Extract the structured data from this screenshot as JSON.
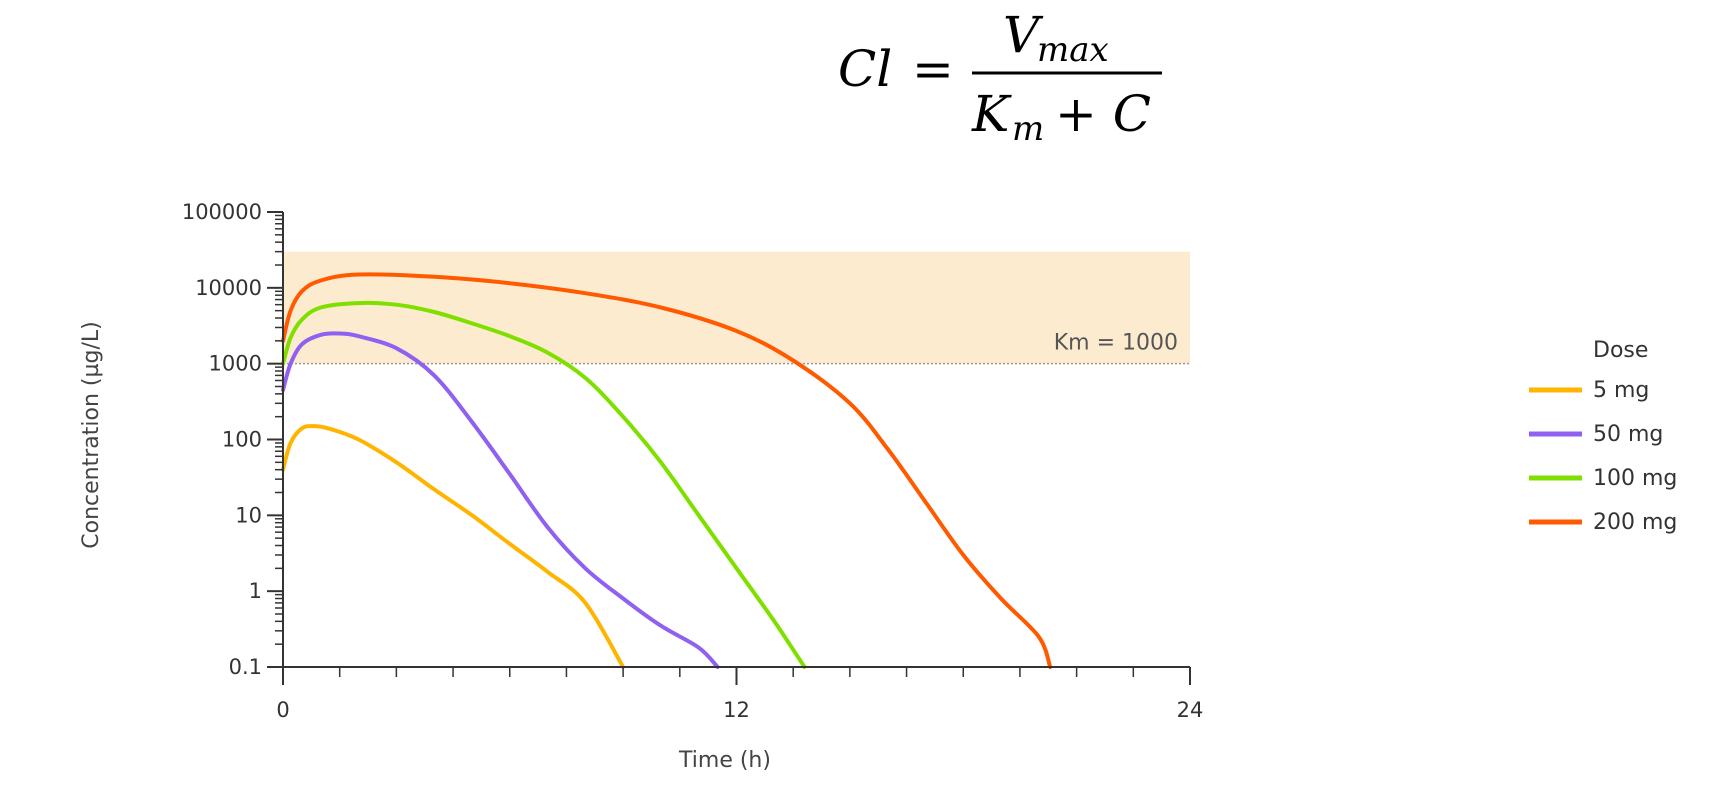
{
  "formula": {
    "lhs": "Cl",
    "equals": "=",
    "num_main": "V",
    "num_sub": "max",
    "den_main": "K",
    "den_sub": "m",
    "den_rest": "+ C"
  },
  "chart_data": {
    "type": "line",
    "title": "",
    "xlabel": "Time (h)",
    "ylabel": "Concentration (µg/L)",
    "xlim": [
      0,
      24
    ],
    "ylim": [
      0.1,
      100000
    ],
    "yscale": "log",
    "xticks": [
      0,
      12,
      24
    ],
    "xtick_labels": [
      "0",
      "12",
      "24"
    ],
    "yticks": [
      0.1,
      1,
      10,
      100,
      1000,
      10000,
      100000
    ],
    "ytick_labels": [
      "0.1",
      "1",
      "10",
      "100",
      "1000",
      "10000",
      "100000"
    ],
    "grid": false,
    "legend": {
      "title": "Dose",
      "position": "right"
    },
    "shaded_band": {
      "from": 1000,
      "to": 30000,
      "color": "#fdebd0"
    },
    "reference_line": {
      "y": 1000,
      "label": "Km = 1000",
      "color": "#999999"
    },
    "series": [
      {
        "name": "5 mg",
        "color": "#ffb400",
        "points": [
          [
            0,
            40
          ],
          [
            0.2,
            90
          ],
          [
            0.5,
            140
          ],
          [
            0.8,
            150
          ],
          [
            1.2,
            140
          ],
          [
            2,
            100
          ],
          [
            3,
            50
          ],
          [
            4,
            22
          ],
          [
            5,
            10
          ],
          [
            6,
            4.2
          ],
          [
            7,
            1.8
          ],
          [
            8,
            0.7
          ],
          [
            9,
            0.1
          ]
        ]
      },
      {
        "name": "50 mg",
        "color": "#9060f0",
        "points": [
          [
            0,
            450
          ],
          [
            0.2,
            1000
          ],
          [
            0.5,
            1800
          ],
          [
            1,
            2400
          ],
          [
            1.5,
            2500
          ],
          [
            2,
            2300
          ],
          [
            3,
            1600
          ],
          [
            4,
            700
          ],
          [
            5,
            170
          ],
          [
            6,
            35
          ],
          [
            7,
            7
          ],
          [
            8,
            2
          ],
          [
            9,
            0.8
          ],
          [
            10,
            0.35
          ],
          [
            11,
            0.18
          ],
          [
            11.5,
            0.1
          ]
        ]
      },
      {
        "name": "100 mg",
        "color": "#7fe000",
        "points": [
          [
            0,
            1000
          ],
          [
            0.2,
            2200
          ],
          [
            0.5,
            3800
          ],
          [
            1,
            5500
          ],
          [
            2,
            6300
          ],
          [
            3,
            6000
          ],
          [
            4,
            4800
          ],
          [
            5,
            3400
          ],
          [
            6,
            2300
          ],
          [
            7,
            1400
          ],
          [
            8,
            650
          ],
          [
            9,
            200
          ],
          [
            10,
            50
          ],
          [
            11,
            10
          ],
          [
            12,
            2
          ],
          [
            13,
            0.4
          ],
          [
            13.8,
            0.1
          ]
        ]
      },
      {
        "name": "200 mg",
        "color": "#ff5a00",
        "points": [
          [
            0,
            2000
          ],
          [
            0.2,
            5000
          ],
          [
            0.5,
            9000
          ],
          [
            1,
            12500
          ],
          [
            2,
            15000
          ],
          [
            4,
            14000
          ],
          [
            6,
            11500
          ],
          [
            8,
            8500
          ],
          [
            10,
            5500
          ],
          [
            12,
            2700
          ],
          [
            13.5,
            1100
          ],
          [
            15,
            300
          ],
          [
            16,
            75
          ],
          [
            17,
            15
          ],
          [
            18,
            3
          ],
          [
            19,
            0.8
          ],
          [
            20,
            0.25
          ],
          [
            20.3,
            0.1
          ]
        ]
      }
    ]
  }
}
